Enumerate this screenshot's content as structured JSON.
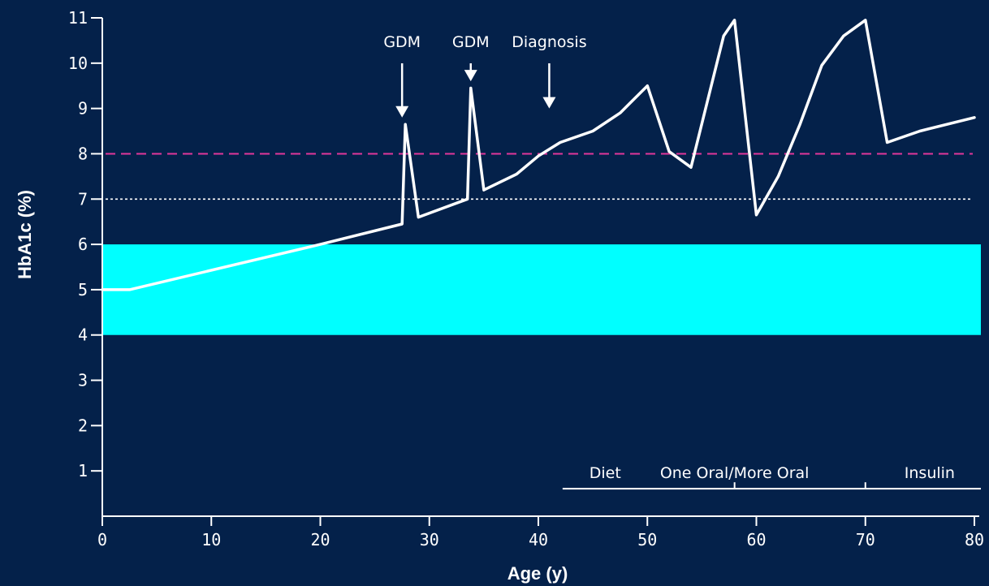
{
  "chart_data": {
    "type": "line",
    "xlabel": "Age (y)",
    "ylabel": "HbA1c (%)",
    "xlim": [
      0,
      80
    ],
    "ylim": [
      0,
      11
    ],
    "x_ticks": [
      0,
      10,
      20,
      30,
      40,
      50,
      60,
      70,
      80
    ],
    "y_ticks": [
      1,
      2,
      3,
      4,
      5,
      6,
      7,
      8,
      9,
      10,
      11
    ],
    "normal_range": {
      "y_from": 4,
      "y_to": 6,
      "color": "#00ffff"
    },
    "reference_lines": [
      {
        "y": 8,
        "color": "#e0369a",
        "style": "dashed"
      },
      {
        "y": 7,
        "color": "#ffffff",
        "style": "dotted"
      }
    ],
    "series": [
      {
        "color": "#ffffff",
        "x": [
          0,
          2.5,
          20,
          27.5,
          27.8,
          29,
          33.5,
          33.8,
          35,
          38,
          40,
          42,
          45,
          47.5,
          50,
          52,
          54,
          57,
          58,
          60,
          62,
          64,
          66,
          68,
          70,
          72,
          75,
          80
        ],
        "y": [
          5.0,
          5.0,
          6.0,
          6.45,
          8.65,
          6.6,
          7.0,
          9.45,
          7.2,
          7.55,
          7.95,
          8.25,
          8.5,
          8.9,
          9.5,
          8.05,
          7.7,
          10.6,
          10.95,
          6.65,
          7.5,
          8.65,
          9.95,
          10.6,
          10.95,
          8.25,
          8.5,
          8.8
        ]
      }
    ],
    "annotations": [
      {
        "label": "GDM",
        "x": 27.5,
        "arrow_to_y": 8.8
      },
      {
        "label": "GDM",
        "x": 33.8,
        "arrow_to_y": 9.6
      },
      {
        "label": "Diagnosis",
        "x": 41,
        "arrow_to_y": 9.0
      }
    ],
    "treatment_phases": {
      "labels": [
        "Diet",
        "One Oral/More Oral",
        "Insulin"
      ],
      "y": 1,
      "x_from": 42,
      "x_to": 80,
      "dividers": [
        58,
        70
      ]
    }
  }
}
